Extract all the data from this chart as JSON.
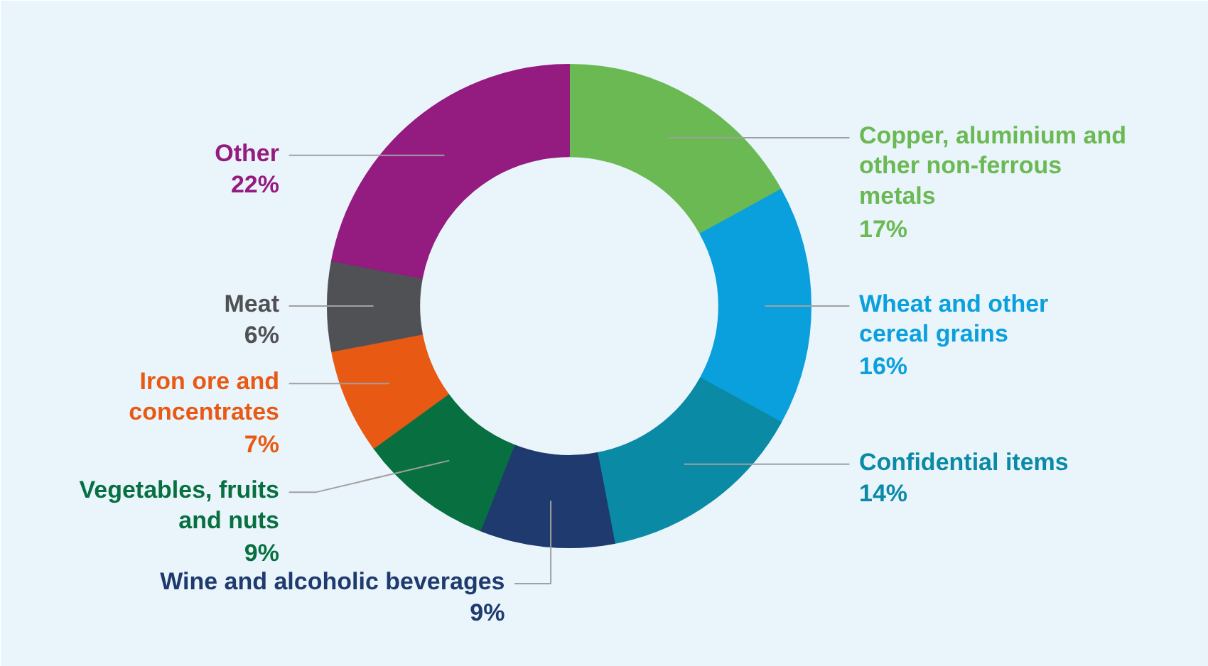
{
  "chart_data": {
    "type": "donut",
    "categories": [
      "Copper, aluminium and other non-ferrous metals",
      "Wheat and other cereal grains",
      "Confidential items",
      "Wine and alcoholic beverages",
      "Vegetables, fruits and nuts",
      "Iron ore and concentrates",
      "Meat",
      "Other"
    ],
    "values": [
      17,
      16,
      14,
      9,
      9,
      7,
      6,
      22
    ],
    "value_labels": [
      "17%",
      "16%",
      "14%",
      "9%",
      "9%",
      "7%",
      "6%",
      "22%"
    ],
    "colors": [
      "#6ab952",
      "#0aa0dd",
      "#0b8aa6",
      "#1e3a6e",
      "#087040",
      "#e85a14",
      "#505155",
      "#941b80"
    ]
  }
}
